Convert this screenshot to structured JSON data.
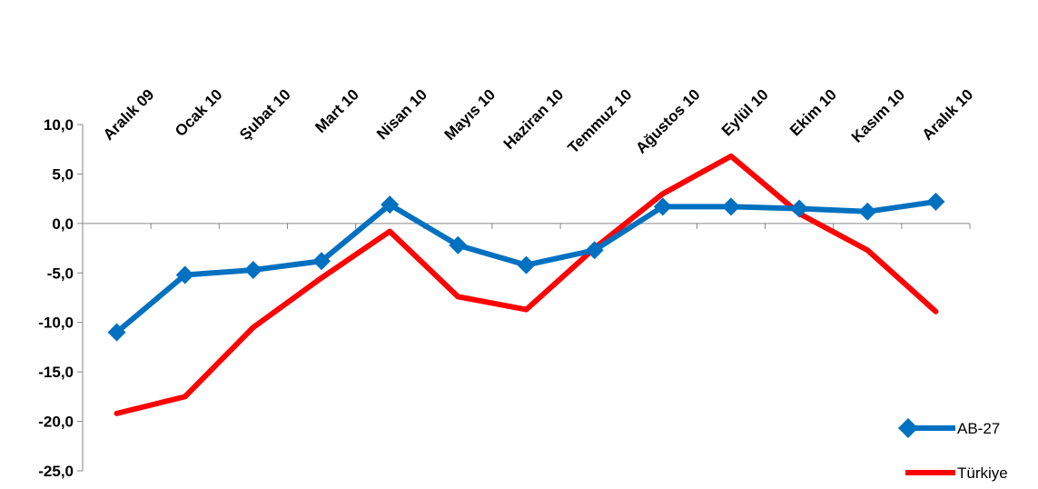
{
  "chart_data": {
    "type": "line",
    "categories": [
      "Aralık 09",
      "Ocak 10",
      "Şubat 10",
      "Mart 10",
      "Nisan 10",
      "Mayıs 10",
      "Haziran 10",
      "Temmuz 10",
      "Ağustos 10",
      "Eylül 10",
      "Ekim 10",
      "Kasım 10",
      "Aralık 10"
    ],
    "series": [
      {
        "name": "AB-27",
        "color": "#0070c0",
        "marker": "diamond",
        "values": [
          -11.0,
          -5.2,
          -4.7,
          -3.8,
          1.9,
          -2.2,
          -4.2,
          -2.7,
          1.7,
          1.7,
          1.5,
          1.2,
          2.2
        ]
      },
      {
        "name": "Türkiye",
        "color": "#ff0000",
        "marker": "none",
        "values": [
          -19.2,
          -17.5,
          -10.5,
          -5.5,
          -0.8,
          -7.4,
          -8.7,
          -2.5,
          3.0,
          6.8,
          1.0,
          -2.7,
          -8.9
        ]
      }
    ],
    "y_ticks": [
      "10,0",
      "5,0",
      "0,0",
      "-5,0",
      "-10,0",
      "-15,0",
      "-20,0",
      "-25,0"
    ],
    "ylim": [
      -25,
      10
    ],
    "grid": false,
    "legend_position": "bottom-right"
  }
}
